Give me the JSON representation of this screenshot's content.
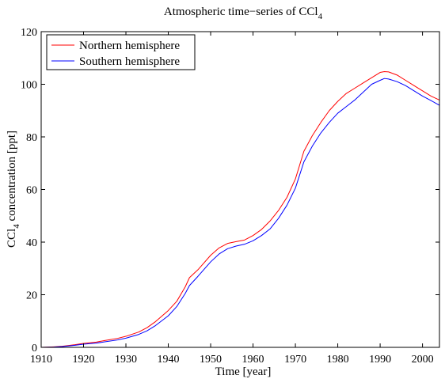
{
  "chart_data": {
    "type": "line",
    "title": "Atmospheric time−series of CCl",
    "title_subscript": "4",
    "xlabel": "Time [year]",
    "ylabel_prefix": "CCl",
    "ylabel_subscript": "4",
    "ylabel_suffix": " concentration [ppt]",
    "xlim": [
      1910,
      2004
    ],
    "ylim": [
      0,
      120
    ],
    "xticks": [
      1910,
      1920,
      1930,
      1940,
      1950,
      1960,
      1970,
      1980,
      1990,
      2000
    ],
    "yticks": [
      0,
      20,
      40,
      60,
      80,
      100,
      120
    ],
    "grid": false,
    "legend_position": "top-left",
    "series": [
      {
        "name": "Northern hemisphere",
        "color": "#ff0000",
        "x": [
          1910,
          1913,
          1915,
          1918,
          1920,
          1923,
          1925,
          1928,
          1930,
          1933,
          1935,
          1937,
          1940,
          1942,
          1944,
          1945,
          1947,
          1950,
          1952,
          1954,
          1956,
          1958,
          1960,
          1962,
          1964,
          1966,
          1968,
          1970,
          1972,
          1974,
          1976,
          1978,
          1980,
          1982,
          1984,
          1986,
          1988,
          1990,
          1991,
          1992,
          1994,
          1996,
          1998,
          2000,
          2002,
          2004
        ],
        "y": [
          0.0,
          0.2,
          0.4,
          1.0,
          1.5,
          2.0,
          2.6,
          3.4,
          4.2,
          5.8,
          7.5,
          9.8,
          14.0,
          17.5,
          23.0,
          26.5,
          29.5,
          35.0,
          37.8,
          39.5,
          40.2,
          40.8,
          42.5,
          44.8,
          48.0,
          52.0,
          57.0,
          64.0,
          74.5,
          80.5,
          85.5,
          90.0,
          93.5,
          96.5,
          98.5,
          100.5,
          102.5,
          104.5,
          104.8,
          104.7,
          103.5,
          101.5,
          99.5,
          97.5,
          95.5,
          94.0
        ]
      },
      {
        "name": "Southern hemisphere",
        "color": "#0000ff",
        "x": [
          1910,
          1913,
          1915,
          1918,
          1920,
          1923,
          1925,
          1928,
          1930,
          1933,
          1935,
          1937,
          1940,
          1942,
          1944,
          1945,
          1947,
          1950,
          1952,
          1954,
          1956,
          1958,
          1960,
          1962,
          1964,
          1966,
          1968,
          1970,
          1972,
          1974,
          1976,
          1978,
          1980,
          1982,
          1984,
          1986,
          1988,
          1990,
          1991,
          1992,
          1994,
          1996,
          1998,
          2000,
          2002,
          2004
        ],
        "y": [
          0.0,
          0.1,
          0.3,
          0.8,
          1.2,
          1.6,
          2.1,
          2.8,
          3.5,
          4.9,
          6.3,
          8.3,
          12.0,
          15.5,
          20.5,
          23.5,
          27.0,
          32.5,
          35.5,
          37.5,
          38.5,
          39.2,
          40.5,
          42.5,
          45.0,
          49.0,
          54.0,
          60.5,
          70.5,
          76.5,
          81.5,
          85.5,
          89.0,
          91.5,
          94.0,
          97.0,
          100.0,
          101.5,
          102.2,
          102.0,
          101.0,
          99.5,
          97.5,
          95.5,
          93.8,
          92.0
        ]
      }
    ]
  }
}
